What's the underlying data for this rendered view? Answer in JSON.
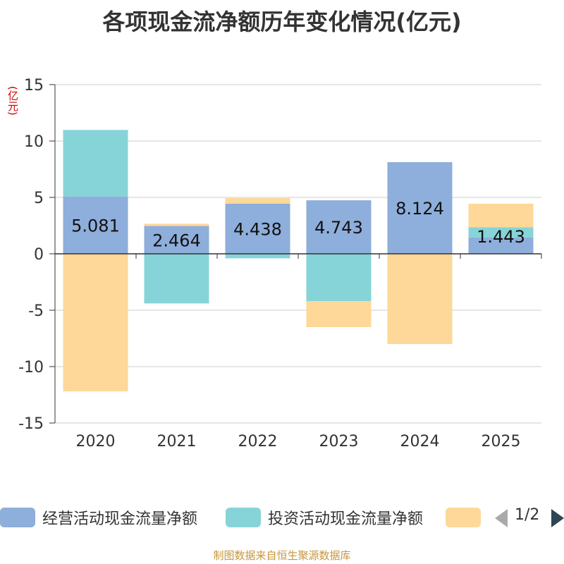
{
  "title": "各项现金流净额历年变化情况(亿元)",
  "unit_label": "(亿元)",
  "footer": "制图数据来自恒生聚源数据库",
  "legend": {
    "items": [
      {
        "label": "经营活动现金流量净额",
        "color": "#8eaedb"
      },
      {
        "label": "投资活动现金流量净额",
        "color": "#86d4d8"
      },
      {
        "label": "",
        "color": "#fed899"
      }
    ],
    "page": "1/2"
  },
  "chart_data": {
    "type": "bar",
    "stacked": true,
    "title": "各项现金流净额历年变化情况(亿元)",
    "ylabel": "(亿元)",
    "ylim": [
      -15,
      15
    ],
    "yticks": [
      15,
      10,
      5,
      0,
      -5,
      -10,
      -15
    ],
    "categories": [
      "2020",
      "2021",
      "2022",
      "2023",
      "2024",
      "2025"
    ],
    "series": [
      {
        "name": "经营活动现金流量净额",
        "color": "#8eaedb",
        "values": [
          5.081,
          2.464,
          4.438,
          4.743,
          8.124,
          1.443
        ],
        "labels": [
          "5.081",
          "2.464",
          "4.438",
          "4.743",
          "8.124",
          "1.443"
        ]
      },
      {
        "name": "投资活动现金流量净额",
        "color": "#86d4d8",
        "values": [
          5.9,
          -4.4,
          -0.4,
          -4.2,
          0,
          0.9
        ]
      },
      {
        "name": "",
        "color": "#fed899",
        "values": [
          -12.2,
          0.2,
          0.5,
          -2.3,
          -8.0,
          2.1
        ]
      }
    ]
  }
}
